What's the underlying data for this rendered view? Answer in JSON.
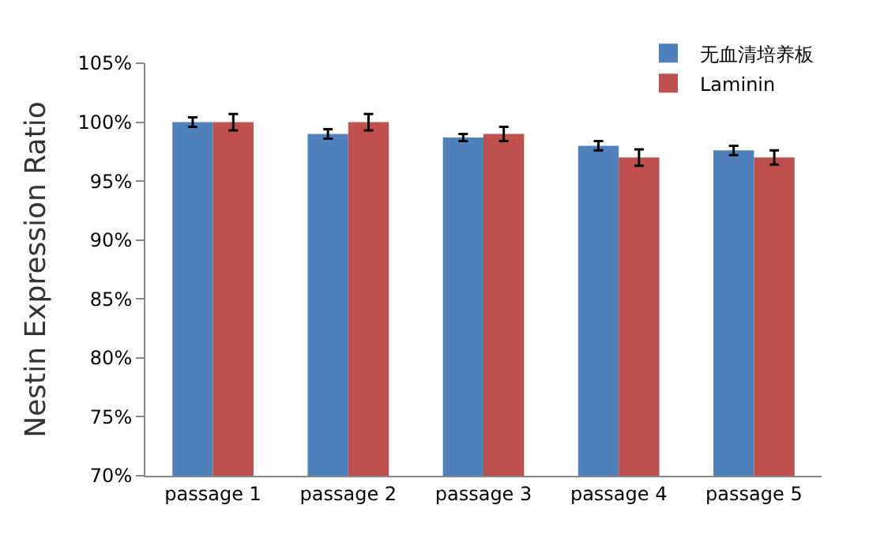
{
  "chart_data": {
    "type": "bar",
    "ylabel": "Nestin Expression Ratio",
    "categories": [
      "passage 1",
      "passage 2",
      "passage 3",
      "passage 4",
      "passage 5"
    ],
    "series": [
      {
        "name": "无血清培养板",
        "color": "#4f81bd",
        "values": [
          100,
          99,
          98.7,
          98,
          97.6
        ],
        "errors": [
          0.4,
          0.4,
          0.3,
          0.4,
          0.4
        ]
      },
      {
        "name": "Laminin",
        "color": "#c0504d",
        "values": [
          100,
          100,
          99,
          97,
          97
        ],
        "errors": [
          0.7,
          0.7,
          0.6,
          0.7,
          0.6
        ]
      }
    ],
    "ylim": [
      70,
      105
    ],
    "yticks": [
      {
        "value": 70,
        "label": "70%"
      },
      {
        "value": 75,
        "label": "75%"
      },
      {
        "value": 80,
        "label": "80%"
      },
      {
        "value": 85,
        "label": "85%"
      },
      {
        "value": 90,
        "label": "90%"
      },
      {
        "value": 95,
        "label": "95%"
      },
      {
        "value": 100,
        "label": "100%"
      },
      {
        "value": 105,
        "label": "105%"
      }
    ],
    "grid": false,
    "legend": "top right"
  }
}
